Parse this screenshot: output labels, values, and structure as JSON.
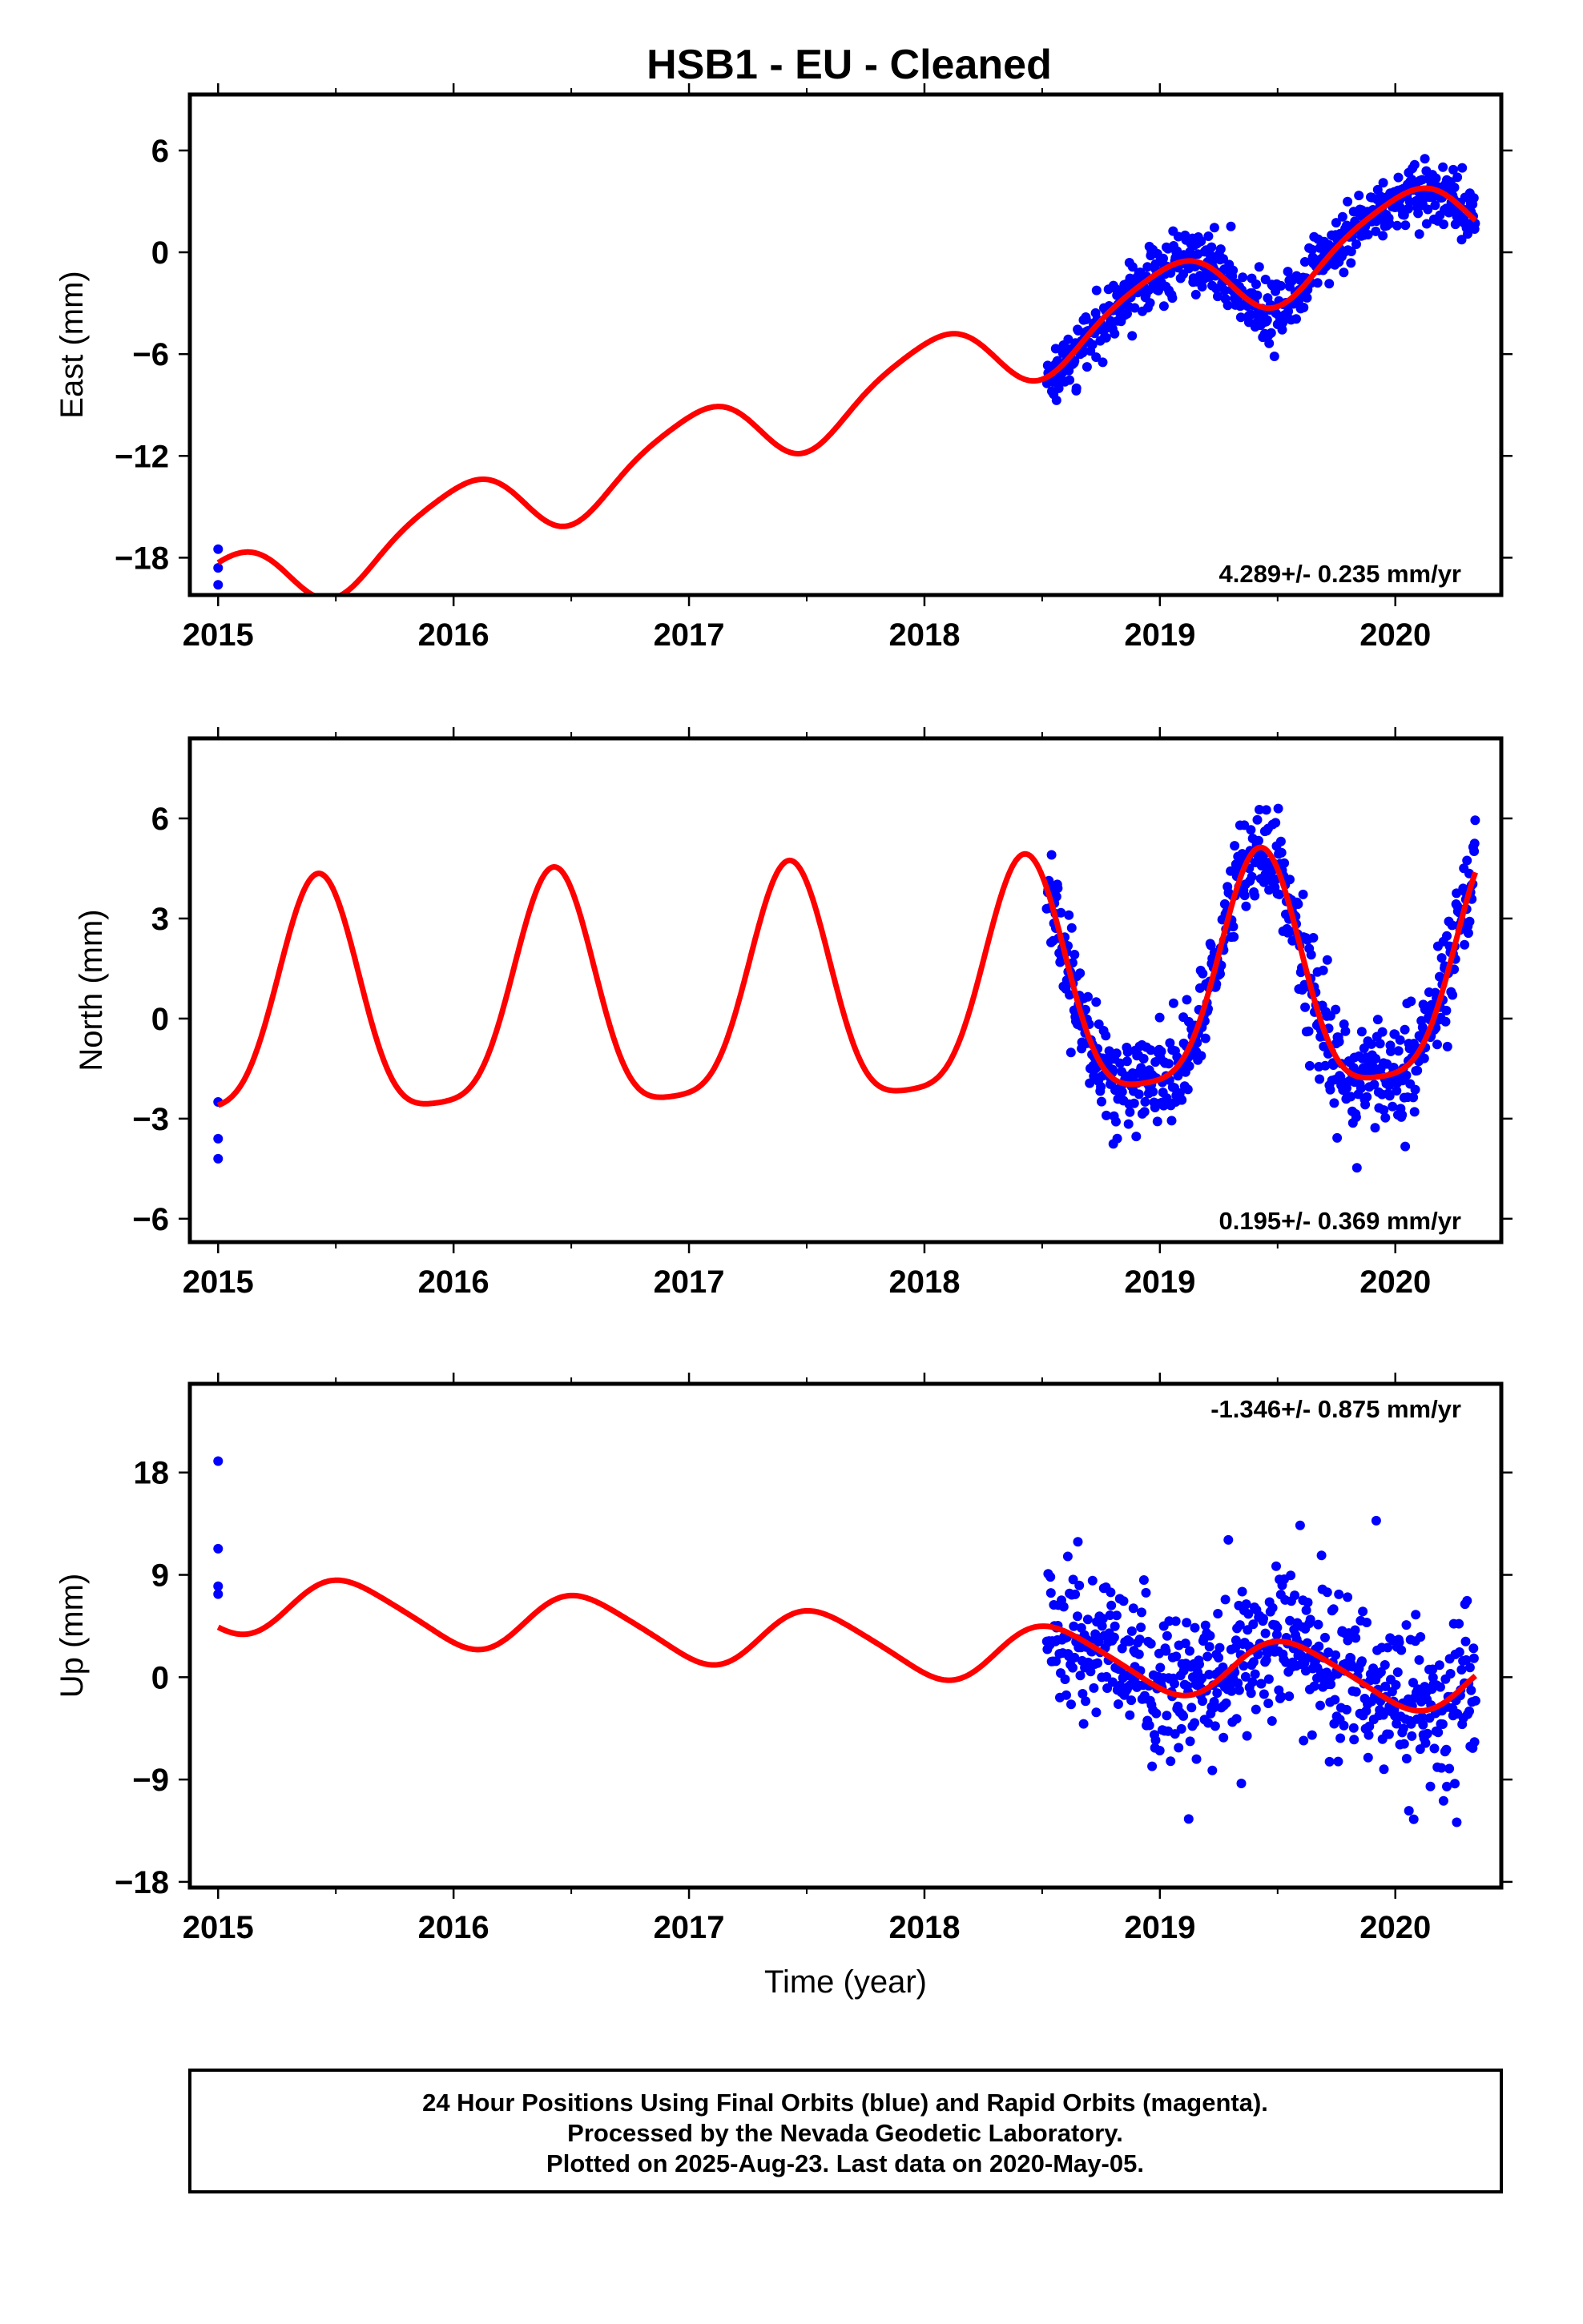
{
  "title": "HSB1  - EU - Cleaned",
  "footer": {
    "lines": [
      "24 Hour Positions Using Final Orbits (blue) and Rapid Orbits (magenta).",
      "Processed by the Nevada Geodetic Laboratory.",
      "Plotted on 2025-Aug-23. Last data on 2020-May-05."
    ]
  },
  "colors": {
    "data_points": "#0000ff",
    "model_curve": "#ff0000",
    "frame": "#000000"
  },
  "chart_data": [
    {
      "type": "scatter",
      "ylabel": "East (mm)",
      "xlabel": "",
      "xlim": [
        2014.88,
        2020.45
      ],
      "ylim": [
        -20.2,
        9.3
      ],
      "xticks": [
        2015,
        2016,
        2017,
        2018,
        2019,
        2020
      ],
      "yticks": [
        -18,
        -12,
        -6,
        0,
        6
      ],
      "yticklabels": [
        "−18",
        "−12",
        "−6",
        "0",
        "6"
      ],
      "rate_label": "4.289+/- 0.235 mm/yr",
      "rate_pos": "bottom-right",
      "model": {
        "rate": 4.289,
        "offset": -20.1,
        "ann_c": 2.1,
        "ann_s": 0.3,
        "semi_c": -0.3,
        "semi_s": 0.2
      },
      "scatter": {
        "sigma": 0.85,
        "outlier_sigma": 1.6
      },
      "early_points": [
        [
          2015.0,
          -17.5
        ],
        [
          2015.0,
          -18.6
        ],
        [
          2015.0,
          -19.6
        ]
      ],
      "data_range": [
        2018.52,
        2020.34
      ],
      "series": [
        {
          "name": "Final Orbits (blue)",
          "kind": "points"
        },
        {
          "name": "model",
          "kind": "line"
        }
      ]
    },
    {
      "type": "scatter",
      "ylabel": "North (mm)",
      "xlabel": "",
      "xlim": [
        2014.88,
        2020.45
      ],
      "ylim": [
        -6.7,
        8.4
      ],
      "xticks": [
        2015,
        2016,
        2017,
        2018,
        2019,
        2020
      ],
      "yticks": [
        -6,
        -3,
        0,
        3,
        6
      ],
      "yticklabels": [
        "−6",
        "−3",
        "0",
        "3",
        "6"
      ],
      "rate_label": "0.195+/- 0.369 mm/yr",
      "rate_pos": "bottom-right",
      "model": {
        "rate": 0.195,
        "offset": 0.0,
        "ann_c": -3.1,
        "ann_s": 1.6,
        "semi_c": 0.5,
        "semi_s": -0.6
      },
      "scatter": {
        "sigma": 0.75,
        "outlier_sigma": 1.3
      },
      "early_points": [
        [
          2015.0,
          -2.5
        ],
        [
          2015.0,
          -3.6
        ],
        [
          2015.0,
          -4.2
        ]
      ],
      "data_range": [
        2018.52,
        2020.34
      ],
      "series": [
        {
          "name": "Final Orbits (blue)",
          "kind": "points"
        },
        {
          "name": "model",
          "kind": "line"
        }
      ]
    },
    {
      "type": "scatter",
      "ylabel": "Up (mm)",
      "xlabel": "Time (year)",
      "xlim": [
        2014.88,
        2020.45
      ],
      "ylim": [
        -18.5,
        25.8
      ],
      "xticks": [
        2015,
        2016,
        2017,
        2018,
        2019,
        2020
      ],
      "yticks": [
        -18,
        -9,
        0,
        9,
        18
      ],
      "yticklabels": [
        "−18",
        "−9",
        "0",
        "9",
        "18"
      ],
      "rate_label": "-1.346+/- 0.875 mm/yr",
      "rate_pos": "top-right",
      "model": {
        "rate": -1.346,
        "offset": 6.6,
        "ann_c": -2.4,
        "ann_s": -0.9,
        "semi_c": 0.2,
        "semi_s": -0.3
      },
      "scatter": {
        "sigma": 3.3,
        "outlier_sigma": 6.5
      },
      "early_points": [
        [
          2015.0,
          19.0
        ],
        [
          2015.0,
          11.3
        ],
        [
          2015.0,
          8.0
        ],
        [
          2015.0,
          7.3
        ]
      ],
      "data_range": [
        2018.52,
        2020.34
      ],
      "series": [
        {
          "name": "Final Orbits (blue)",
          "kind": "points"
        },
        {
          "name": "model",
          "kind": "line"
        }
      ]
    }
  ]
}
